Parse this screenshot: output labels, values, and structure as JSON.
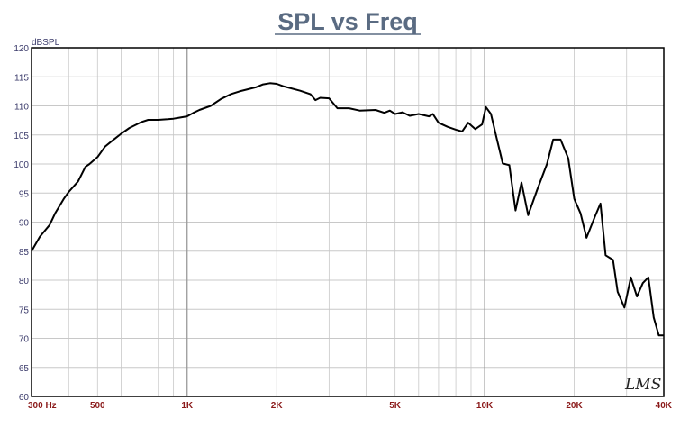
{
  "chart_data": {
    "type": "line",
    "title": "SPL vs Freq",
    "ylabel": "dBSPL",
    "xlabel": "",
    "x_scale": "log",
    "xlim": [
      300,
      40000
    ],
    "ylim": [
      60,
      120
    ],
    "grid": true,
    "watermark": "LMS",
    "colors": {
      "title": "#5a6b82",
      "line": "#000000",
      "grid": "#c8c8c8",
      "x_tick": "#8b1a1a",
      "y_tick": "#3a3a6a"
    },
    "y_ticks": [
      60,
      65,
      70,
      75,
      80,
      85,
      90,
      95,
      100,
      105,
      110,
      115,
      120
    ],
    "x_ticks": [
      {
        "value": 300,
        "label": "300 Hz"
      },
      {
        "value": 500,
        "label": "500"
      },
      {
        "value": 1000,
        "label": "1K"
      },
      {
        "value": 2000,
        "label": "2K"
      },
      {
        "value": 5000,
        "label": "5K"
      },
      {
        "value": 10000,
        "label": "10K"
      },
      {
        "value": 20000,
        "label": "20K"
      },
      {
        "value": 40000,
        "label": "40K"
      }
    ],
    "series": [
      {
        "x": [
          300,
          320,
          345,
          360,
          385,
          400,
          430,
          455,
          470,
          500,
          530,
          560,
          600,
          640,
          700,
          740,
          800,
          860,
          900,
          950,
          1000,
          1050,
          1100,
          1200,
          1300,
          1400,
          1500,
          1700,
          1800,
          1900,
          2000,
          2100,
          2400,
          2600,
          2700,
          2800,
          3000,
          3200,
          3500,
          3800,
          4300,
          4600,
          4800,
          5000,
          5300,
          5600,
          6000,
          6500,
          6700,
          7000,
          7500,
          8000,
          8400,
          8800,
          9300,
          9800,
          10100,
          10500,
          11000,
          11500,
          12100,
          12700,
          13300,
          14000,
          15000,
          16200,
          17000,
          18000,
          19100,
          20000,
          21000,
          22000,
          23500,
          24500,
          25500,
          27000,
          28000,
          29500,
          31000,
          32500,
          34000,
          35500,
          37000,
          38500,
          40000
        ],
        "y": [
          85.0,
          87.5,
          89.5,
          91.5,
          94.0,
          95.2,
          97.0,
          99.5,
          100.0,
          101.2,
          103.0,
          104.0,
          105.2,
          106.2,
          107.2,
          107.6,
          107.6,
          107.7,
          107.8,
          108.0,
          108.2,
          108.8,
          109.3,
          110.0,
          111.2,
          112.0,
          112.5,
          113.2,
          113.7,
          113.9,
          113.8,
          113.4,
          112.6,
          112.0,
          111.0,
          111.4,
          111.3,
          109.6,
          109.6,
          109.2,
          109.3,
          108.8,
          109.2,
          108.6,
          108.9,
          108.3,
          108.6,
          108.2,
          108.6,
          107.1,
          106.4,
          105.9,
          105.6,
          107.1,
          106.0,
          106.8,
          109.8,
          108.6,
          104.2,
          100.1,
          99.8,
          92.0,
          96.8,
          91.2,
          95.5,
          100.0,
          104.2,
          104.2,
          101.0,
          94.0,
          91.5,
          87.3,
          91.0,
          93.2,
          84.3,
          83.5,
          78.0,
          75.3,
          80.5,
          77.2,
          79.5,
          80.5,
          73.6,
          70.5,
          70.5
        ]
      }
    ]
  }
}
